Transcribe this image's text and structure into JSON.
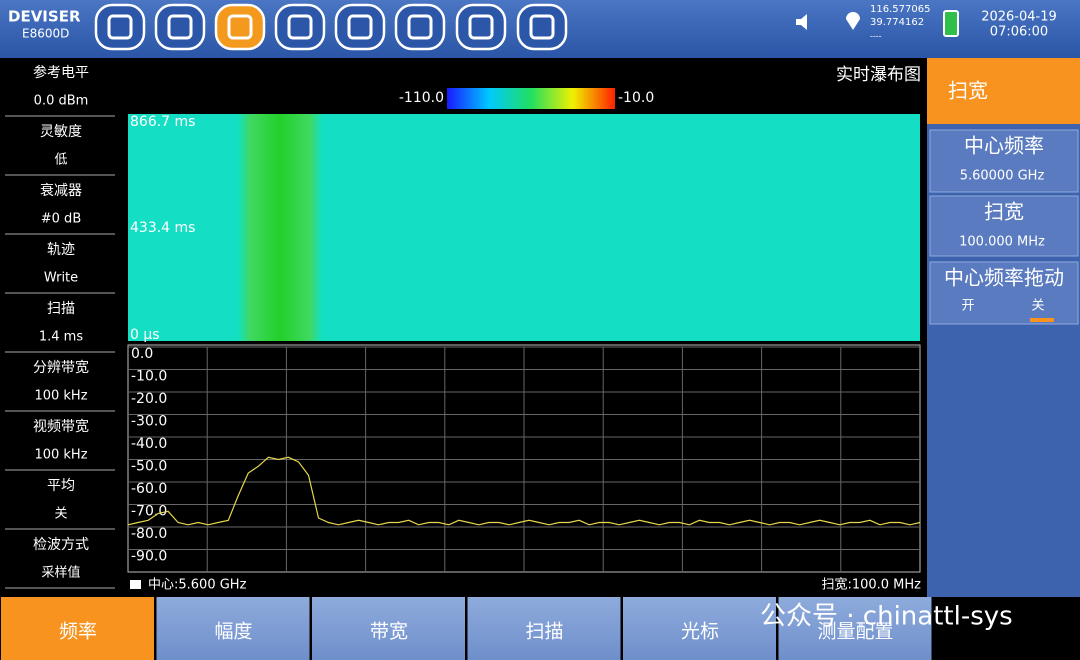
{
  "header": {
    "logo": "DEVISER",
    "model": "E8600D",
    "longitude": "116.577065",
    "latitude": "39.774162",
    "altitude": "----",
    "date": "2026-04-19",
    "time": "07:06:00"
  },
  "left_panel": [
    {
      "label": "参考电平",
      "value": "0.0 dBm"
    },
    {
      "label": "灵敏度",
      "value": "低"
    },
    {
      "label": "衰减器",
      "value": "#0 dB"
    },
    {
      "label": "轨迹",
      "value": "Write"
    },
    {
      "label": "扫描",
      "value": "1.4 ms"
    },
    {
      "label": "分辨带宽",
      "value": "100 kHz"
    },
    {
      "label": "视频带宽",
      "value": "100 kHz"
    },
    {
      "label": "平均",
      "value": "关"
    },
    {
      "label": "检波方式",
      "value": "采样值"
    }
  ],
  "waterfall": {
    "title": "实时瀑布图",
    "scale_min": "-110.0",
    "scale_max": "-10.0",
    "time_labels": [
      "866.7 ms",
      "433.4 ms",
      "0 µs"
    ]
  },
  "chart_data": {
    "type": "line",
    "ylim": [
      0,
      -100
    ],
    "yticks": [
      {
        "value": 0,
        "label": "0.0"
      },
      {
        "value": -10,
        "label": "-10.0"
      },
      {
        "value": -20,
        "label": "-20.0"
      },
      {
        "value": -30,
        "label": "-30.0"
      },
      {
        "value": -40,
        "label": "-40.0"
      },
      {
        "value": -50,
        "label": "-50.0"
      },
      {
        "value": -60,
        "label": "-60.0"
      },
      {
        "value": -70,
        "label": "-70.0"
      },
      {
        "value": -80,
        "label": "-80.0"
      },
      {
        "value": -90,
        "label": "-90.0"
      }
    ],
    "grid": true,
    "series": [
      {
        "color": "#e6d64a",
        "values": [
          -79,
          -78,
          -77,
          -74,
          -73,
          -78,
          -79,
          -78,
          -79,
          -78,
          -77,
          -66,
          -56,
          -53,
          -49,
          -50,
          -49,
          -51,
          -57,
          -76,
          -78,
          -79,
          -78,
          -77,
          -78,
          -79,
          -78,
          -78,
          -77,
          -79,
          -78,
          -78,
          -79,
          -77,
          -78,
          -79,
          -78,
          -78,
          -79,
          -78,
          -77,
          -78,
          -79,
          -78,
          -78,
          -77,
          -79,
          -78,
          -78,
          -79,
          -78,
          -77,
          -78,
          -79,
          -78,
          -78,
          -79,
          -77,
          -78,
          -78,
          -79,
          -78,
          -77,
          -78,
          -79,
          -78,
          -78,
          -79,
          -78,
          -77,
          -78,
          -79,
          -78,
          -78,
          -77,
          -79,
          -78,
          -78,
          -79,
          -78
        ]
      }
    ]
  },
  "status": {
    "center": "中心:5.600 GHz",
    "span": "扫宽:100.0 MHz"
  },
  "right_panel": {
    "title": "扫宽",
    "items": [
      {
        "label": "中心频率",
        "value": "5.60000 GHz"
      },
      {
        "label": "扫宽",
        "value": "100.000 MHz"
      },
      {
        "label": "中心频率拖动",
        "options": [
          "开",
          "关"
        ]
      }
    ]
  },
  "tabs": [
    "频率",
    "幅度",
    "带宽",
    "扫描",
    "光标",
    "测量配置"
  ],
  "watermark": "公众号 · chinattl-sys"
}
